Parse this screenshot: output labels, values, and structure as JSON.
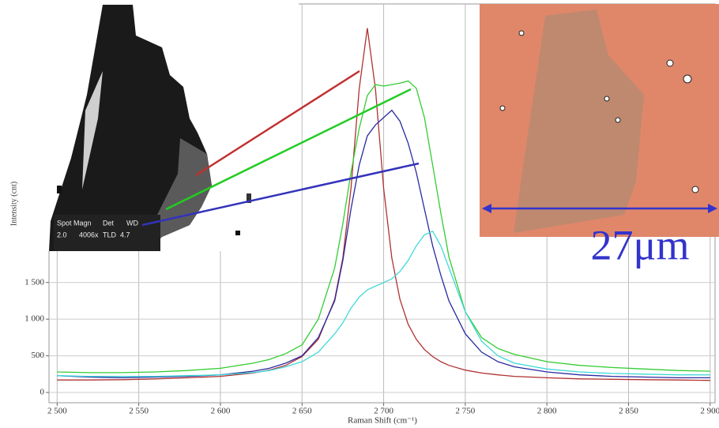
{
  "chart_data": {
    "type": "line",
    "x_label": "Raman Shift (cm⁻¹)",
    "y_label": "Intensity (cnt)",
    "annotation": "27μm",
    "sem_labels": [
      "Spot Magn",
      "Det",
      "WD",
      "2.0",
      "4006x",
      "TLD",
      "4.7"
    ],
    "x": [
      2500,
      2520,
      2540,
      2560,
      2580,
      2600,
      2620,
      2630,
      2640,
      2650,
      2660,
      2670,
      2675,
      2680,
      2685,
      2690,
      2695,
      2700,
      2705,
      2710,
      2715,
      2720,
      2725,
      2730,
      2735,
      2740,
      2750,
      2760,
      2770,
      2780,
      2800,
      2820,
      2840,
      2860,
      2880,
      2900
    ],
    "series": [
      {
        "color": "#b03030",
        "values": [
          170,
          170,
          175,
          185,
          200,
          220,
          265,
          305,
          370,
          490,
          725,
          1270,
          1835,
          2780,
          4140,
          4970,
          4140,
          2780,
          1835,
          1270,
          930,
          725,
          585,
          490,
          420,
          370,
          305,
          265,
          240,
          220,
          200,
          185,
          180,
          175,
          170,
          165
        ]
      },
      {
        "color": "#33cc33",
        "values": [
          280,
          270,
          270,
          280,
          300,
          330,
          400,
          450,
          530,
          650,
          1000,
          1700,
          2300,
          3000,
          3600,
          4050,
          4200,
          4180,
          4200,
          4220,
          4250,
          4150,
          3750,
          3100,
          2450,
          1850,
          1100,
          750,
          600,
          520,
          420,
          370,
          340,
          320,
          300,
          290
        ]
      },
      {
        "color": "#2a2aa0",
        "values": [
          230,
          210,
          200,
          210,
          220,
          240,
          290,
          330,
          400,
          500,
          750,
          1250,
          1800,
          2500,
          3100,
          3500,
          3650,
          3750,
          3850,
          3700,
          3400,
          3000,
          2500,
          2000,
          1600,
          1250,
          800,
          550,
          420,
          350,
          280,
          240,
          220,
          210,
          200,
          200
        ]
      },
      {
        "color": "#40d8d8",
        "values": [
          230,
          220,
          220,
          220,
          230,
          240,
          270,
          300,
          350,
          420,
          550,
          800,
          950,
          1150,
          1300,
          1400,
          1450,
          1500,
          1550,
          1650,
          1800,
          2000,
          2150,
          2200,
          2000,
          1700,
          1100,
          700,
          500,
          400,
          320,
          280,
          260,
          250,
          240,
          240
        ]
      }
    ],
    "xlim": [
      2495,
      2903
    ],
    "ylim": [
      -140,
      5300
    ],
    "xticks": [
      {
        "value": 2500,
        "label": "2 500"
      },
      {
        "value": 2550,
        "label": "2 550"
      },
      {
        "value": 2600,
        "label": "2 600"
      },
      {
        "value": 2650,
        "label": "2 650"
      },
      {
        "value": 2700,
        "label": "2 700"
      },
      {
        "value": 2750,
        "label": "2 750"
      },
      {
        "value": 2800,
        "label": "2 800"
      },
      {
        "value": 2850,
        "label": "2 850"
      },
      {
        "value": 2900,
        "label": "2 900"
      }
    ],
    "yticks": [
      0,
      500,
      {
        "value": 1000,
        "label": "1 000"
      },
      {
        "value": 1500,
        "label": "1 500"
      }
    ],
    "grid": true
  }
}
